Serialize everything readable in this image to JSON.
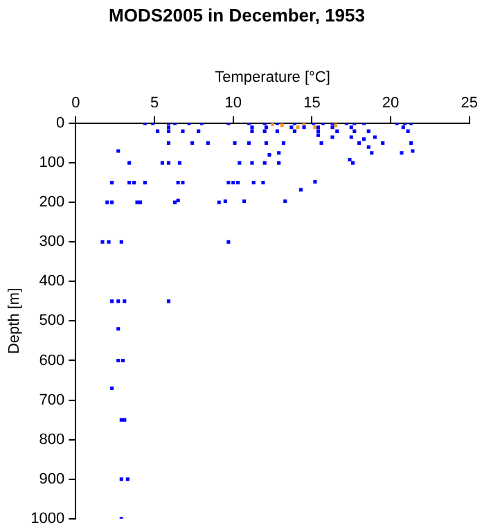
{
  "chart_data": {
    "type": "scatter",
    "title": "MODS2005 in December, 1953",
    "xlabel": "Temperature [°C]",
    "ylabel": "Depth [m]",
    "xlim": [
      0,
      25
    ],
    "xticks": [
      0,
      5,
      10,
      15,
      20,
      25
    ],
    "ylim": [
      1000,
      0
    ],
    "yticks": [
      0,
      100,
      200,
      300,
      400,
      500,
      600,
      700,
      800,
      900,
      1000
    ],
    "marker": "square",
    "series": [
      {
        "color": "#0000ff",
        "x": [
          4.4,
          4.9,
          5.9,
          6.3,
          7.2,
          8.0,
          9.7,
          11.0,
          12.0,
          12.8,
          13.9,
          15.1,
          15.7,
          16.3,
          17.2,
          17.7,
          18.3,
          20.4,
          20.9,
          21.3,
          5.9,
          11.2,
          12.1,
          13.7,
          14.5,
          15.4,
          16.3,
          17.5,
          20.8,
          5.2,
          5.9,
          6.8,
          7.8,
          11.2,
          12.0,
          12.8,
          13.9,
          15.4,
          16.6,
          17.7,
          18.6,
          21.1,
          15.4,
          16.3,
          17.5,
          18.3,
          19.0,
          5.9,
          7.4,
          8.4,
          10.1,
          11.0,
          12.1,
          13.2,
          15.6,
          18.0,
          19.5,
          21.3,
          18.6,
          2.7,
          21.4,
          12.9,
          18.8,
          20.7,
          12.3,
          17.4,
          17.6,
          3.4,
          5.5,
          5.9,
          6.6,
          10.4,
          11.2,
          12.0,
          12.9,
          2.3,
          3.4,
          3.7,
          4.4,
          6.5,
          6.8,
          9.7,
          10.0,
          10.3,
          11.3,
          11.9,
          15.2,
          14.3,
          2.0,
          2.3,
          3.9,
          4.1,
          6.3,
          6.5,
          9.1,
          9.5,
          10.7,
          13.3,
          1.7,
          2.1,
          2.9,
          9.7,
          2.3,
          2.7,
          3.1,
          5.9,
          2.7,
          2.7,
          3.0,
          2.3,
          2.9,
          3.1,
          2.9,
          3.3,
          2.9
        ],
        "values": [
          0,
          0,
          0,
          0,
          0,
          0,
          0,
          0,
          0,
          0,
          0,
          0,
          0,
          0,
          0,
          0,
          0,
          0,
          0,
          0,
          10,
          10,
          10,
          10,
          10,
          10,
          10,
          10,
          10,
          20,
          20,
          20,
          20,
          20,
          20,
          20,
          20,
          20,
          20,
          20,
          20,
          20,
          30,
          35,
          35,
          40,
          35,
          50,
          50,
          50,
          50,
          50,
          50,
          50,
          50,
          50,
          50,
          50,
          60,
          70,
          70,
          75,
          75,
          75,
          80,
          92,
          100,
          100,
          100,
          100,
          100,
          100,
          100,
          100,
          100,
          150,
          150,
          150,
          150,
          150,
          150,
          150,
          150,
          150,
          150,
          150,
          148,
          168,
          200,
          200,
          200,
          200,
          200,
          195,
          200,
          197,
          197,
          197,
          300,
          300,
          300,
          300,
          450,
          450,
          450,
          450,
          520,
          600,
          600,
          670,
          750,
          750,
          900,
          900,
          1000
        ]
      },
      {
        "color": "#f0a020",
        "x": [
          12.5,
          13.1,
          14.1,
          14.5,
          15.2,
          16.5
        ],
        "values": [
          2,
          5,
          10,
          3,
          10,
          5
        ]
      }
    ]
  }
}
